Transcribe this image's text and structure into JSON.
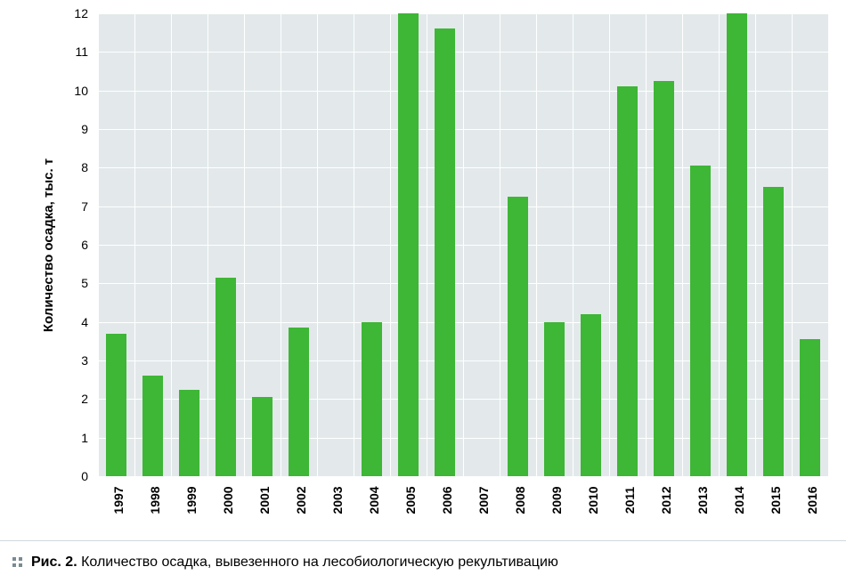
{
  "chart": {
    "type": "bar",
    "ylabel": "Количество осадка, тыс. т",
    "label_fontsize": 15,
    "tick_fontsize": 14,
    "ylim": [
      0,
      12
    ],
    "ytick_step": 1,
    "yticks": [
      0,
      1,
      2,
      3,
      4,
      5,
      6,
      7,
      8,
      9,
      10,
      11,
      12
    ],
    "categories": [
      "1997",
      "1998",
      "1999",
      "2000",
      "2001",
      "2002",
      "2003",
      "2004",
      "2005",
      "2006",
      "2007",
      "2008",
      "2009",
      "2010",
      "2011",
      "2012",
      "2013",
      "2014",
      "2015",
      "2016"
    ],
    "values": [
      3.7,
      2.6,
      2.25,
      5.15,
      2.05,
      3.85,
      0,
      4.0,
      12.0,
      11.6,
      0,
      7.25,
      4.0,
      4.2,
      10.1,
      10.25,
      8.05,
      12.0,
      7.5,
      3.55
    ],
    "bar_color": "#3eb636",
    "bar_width": 0.58,
    "background_color": "#e3e9eb",
    "grid_color": "#ffffff",
    "grid_line_width": 1,
    "axis_color": "#000000"
  },
  "caption": {
    "prefix": "Рис. 2.",
    "text": "Количество осадка, вывезенного на лесобиологическую рекультивацию",
    "dot_color": "#7a8a92"
  }
}
